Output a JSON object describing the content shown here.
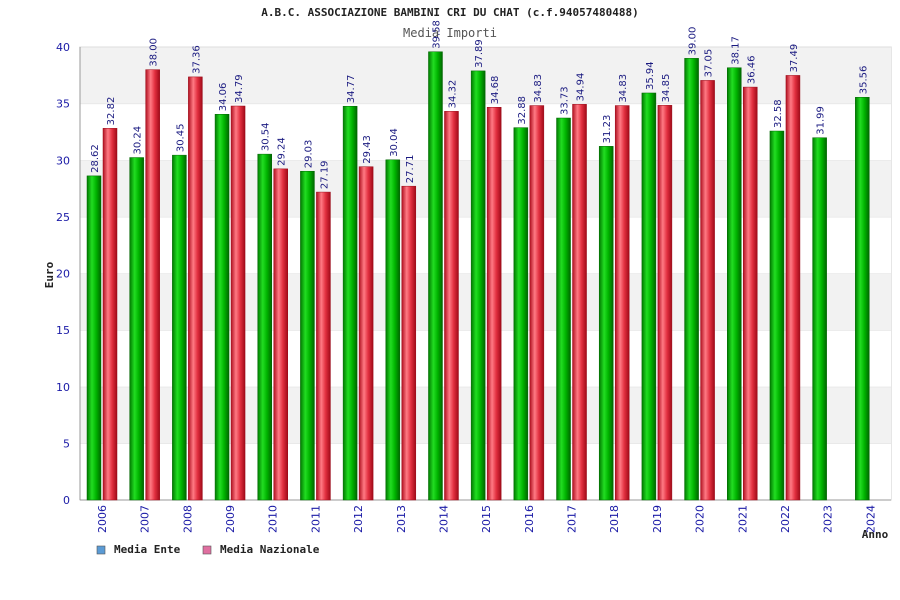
{
  "chart_data": {
    "type": "bar",
    "title": "A.B.C. ASSOCIAZIONE BAMBINI CRI DU CHAT (c.f.94057480488)",
    "subtitle": "Media Importi",
    "xlabel": "Anno",
    "ylabel": "Euro",
    "ylim": [
      0,
      40
    ],
    "yticks": [
      0,
      5,
      10,
      15,
      20,
      25,
      30,
      35,
      40
    ],
    "grid": "horizontal bands",
    "legend_position": "bottom-left",
    "categories": [
      "2006",
      "2007",
      "2008",
      "2009",
      "2010",
      "2011",
      "2012",
      "2013",
      "2014",
      "2015",
      "2016",
      "2017",
      "2018",
      "2019",
      "2020",
      "2021",
      "2022",
      "2023",
      "2024"
    ],
    "series": [
      {
        "name": "Media Ente",
        "color": "#00aa00",
        "legend_color": "#5b9bd5",
        "values": [
          28.62,
          30.24,
          30.45,
          34.06,
          30.54,
          29.03,
          34.77,
          30.04,
          39.58,
          37.89,
          32.88,
          33.73,
          31.23,
          35.94,
          39.0,
          38.17,
          32.58,
          31.99,
          35.56
        ],
        "labels": [
          "28.62",
          "30.24",
          "30.45",
          "34.06",
          "30.54",
          "29.03",
          "34.77",
          "30.04",
          "39.58",
          "37.89",
          "32.88",
          "33.73",
          "31.23",
          "35.94",
          "39.00",
          "38.17",
          "32.58",
          "31.99",
          "35.56"
        ]
      },
      {
        "name": "Media Nazionale",
        "color": "#e02030",
        "legend_color": "#e06fa0",
        "values": [
          32.82,
          38.0,
          37.36,
          34.79,
          29.24,
          27.19,
          29.43,
          27.71,
          34.32,
          34.68,
          34.83,
          34.94,
          34.83,
          34.85,
          37.05,
          36.46,
          37.49,
          null,
          null
        ],
        "labels": [
          "32.82",
          "38.00",
          "37.36",
          "34.79",
          "29.24",
          "27.19",
          "29.43",
          "27.71",
          "34.32",
          "34.68",
          "34.83",
          "34.94",
          "34.83",
          "34.85",
          "37.05",
          "36.46",
          "37.49",
          "",
          ""
        ]
      }
    ]
  }
}
